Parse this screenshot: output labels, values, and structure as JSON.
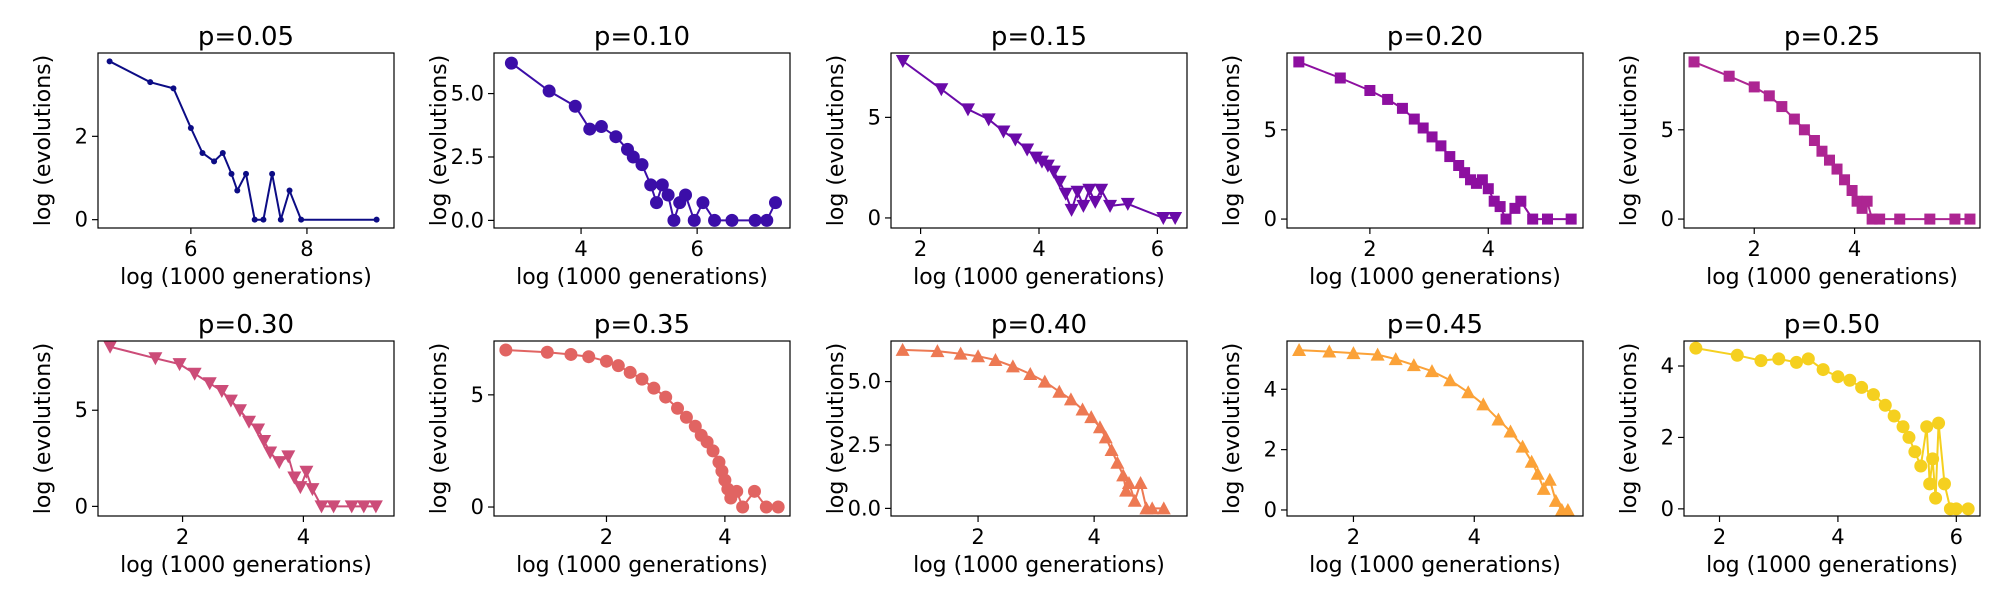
{
  "chart_data": [
    {
      "type": "line",
      "title": "p=0.05",
      "xlabel": "log (1000 generations)",
      "ylabel": "log (evolutions)",
      "color": "#0c0c85",
      "marker": "point",
      "xlim": [
        4.4,
        9.5
      ],
      "ylim": [
        -0.2,
        4.0
      ],
      "xticks": [
        6,
        8
      ],
      "yticks": [
        0,
        2
      ],
      "ytick_labels": [
        "0",
        "2"
      ],
      "x": [
        4.6,
        5.3,
        5.7,
        6.0,
        6.2,
        6.4,
        6.55,
        6.7,
        6.8,
        6.95,
        7.1,
        7.25,
        7.4,
        7.55,
        7.7,
        7.9,
        9.2
      ],
      "y": [
        3.8,
        3.3,
        3.15,
        2.2,
        1.6,
        1.4,
        1.6,
        1.1,
        0.7,
        1.1,
        0.0,
        0.0,
        1.1,
        0.0,
        0.7,
        0.0,
        0.0
      ]
    },
    {
      "type": "line",
      "title": "p=0.10",
      "xlabel": "log (1000 generations)",
      "ylabel": "log (evolutions)",
      "color": "#3b0ea8",
      "marker": "circle",
      "xlim": [
        2.5,
        7.6
      ],
      "ylim": [
        -0.3,
        6.6
      ],
      "xticks": [
        4,
        6
      ],
      "yticks": [
        0,
        2.5,
        5
      ],
      "ytick_labels": [
        "0.0",
        "2.5",
        "5.0"
      ],
      "x": [
        2.8,
        3.45,
        3.9,
        4.15,
        4.35,
        4.6,
        4.8,
        4.9,
        5.05,
        5.2,
        5.3,
        5.4,
        5.5,
        5.6,
        5.7,
        5.8,
        5.95,
        6.1,
        6.3,
        6.6,
        7.0,
        7.2,
        7.35
      ],
      "y": [
        6.2,
        5.1,
        4.5,
        3.6,
        3.7,
        3.3,
        2.8,
        2.5,
        2.2,
        1.4,
        0.7,
        1.4,
        1.0,
        0.0,
        0.7,
        1.0,
        0.0,
        0.7,
        0.0,
        0.0,
        0.0,
        0.0,
        0.7
      ]
    },
    {
      "type": "line",
      "title": "p=0.15",
      "xlabel": "log (1000 generations)",
      "ylabel": "log (evolutions)",
      "color": "#6a0aa8",
      "marker": "triangle-down",
      "xlim": [
        1.5,
        6.5
      ],
      "ylim": [
        -0.5,
        8.2
      ],
      "xticks": [
        2,
        4,
        6
      ],
      "yticks": [
        0,
        5
      ],
      "ytick_labels": [
        "0",
        "5"
      ],
      "x": [
        1.7,
        2.35,
        2.8,
        3.15,
        3.4,
        3.6,
        3.8,
        3.95,
        4.05,
        4.15,
        4.25,
        4.35,
        4.45,
        4.55,
        4.65,
        4.75,
        4.85,
        4.95,
        5.05,
        5.2,
        5.5,
        6.1,
        6.3
      ],
      "y": [
        7.8,
        6.4,
        5.4,
        4.9,
        4.3,
        3.9,
        3.4,
        3.0,
        2.8,
        2.6,
        2.3,
        1.8,
        1.2,
        0.4,
        1.3,
        0.6,
        1.4,
        0.8,
        1.4,
        0.6,
        0.7,
        0.0,
        0.0
      ]
    },
    {
      "type": "line",
      "title": "p=0.20",
      "xlabel": "log (1000 generations)",
      "ylabel": "log (evolutions)",
      "color": "#8d0fa0",
      "marker": "square",
      "xlim": [
        0.6,
        5.6
      ],
      "ylim": [
        -0.5,
        9.3
      ],
      "xticks": [
        2,
        4
      ],
      "yticks": [
        0,
        5
      ],
      "ytick_labels": [
        "0",
        "5"
      ],
      "x": [
        0.8,
        1.5,
        2.0,
        2.3,
        2.55,
        2.75,
        2.9,
        3.05,
        3.2,
        3.35,
        3.5,
        3.6,
        3.7,
        3.8,
        3.9,
        4.0,
        4.1,
        4.2,
        4.3,
        4.45,
        4.55,
        4.75,
        5.0,
        5.4
      ],
      "y": [
        8.8,
        7.9,
        7.2,
        6.7,
        6.2,
        5.6,
        5.1,
        4.6,
        4.1,
        3.5,
        3.0,
        2.6,
        2.2,
        2.0,
        2.2,
        1.7,
        1.0,
        0.7,
        0.0,
        0.6,
        1.0,
        0.0,
        0.0,
        0.0
      ]
    },
    {
      "type": "line",
      "title": "p=0.25",
      "xlabel": "log (1000 generations)",
      "ylabel": "log (evolutions)",
      "color": "#ad2592",
      "marker": "square",
      "xlim": [
        0.6,
        6.5
      ],
      "ylim": [
        -0.5,
        9.3
      ],
      "xticks": [
        2,
        4
      ],
      "yticks": [
        0,
        5
      ],
      "ytick_labels": [
        "0",
        "5"
      ],
      "x": [
        0.8,
        1.5,
        2.0,
        2.3,
        2.55,
        2.8,
        3.0,
        3.2,
        3.35,
        3.5,
        3.65,
        3.8,
        3.95,
        4.05,
        4.15,
        4.25,
        4.35,
        4.5,
        4.9,
        5.5,
        6.0,
        6.3
      ],
      "y": [
        8.8,
        8.0,
        7.4,
        6.9,
        6.3,
        5.6,
        5.0,
        4.4,
        3.8,
        3.3,
        2.8,
        2.2,
        1.6,
        1.0,
        0.6,
        1.0,
        0.0,
        0.0,
        0.0,
        0.0,
        0.0,
        0.0
      ]
    },
    {
      "type": "line",
      "title": "p=0.30",
      "xlabel": "log (1000 generations)",
      "ylabel": "log (evolutions)",
      "color": "#cc4c78",
      "marker": "triangle-down",
      "xlim": [
        0.6,
        5.5
      ],
      "ylim": [
        -0.5,
        8.6
      ],
      "xticks": [
        2,
        4
      ],
      "yticks": [
        0,
        5
      ],
      "ytick_labels": [
        "0",
        "5"
      ],
      "x": [
        0.8,
        1.55,
        1.95,
        2.2,
        2.45,
        2.65,
        2.8,
        2.95,
        3.1,
        3.25,
        3.35,
        3.45,
        3.6,
        3.75,
        3.85,
        3.95,
        4.05,
        4.15,
        4.3,
        4.5,
        4.8,
        5.0,
        5.2
      ],
      "y": [
        8.3,
        7.7,
        7.4,
        6.9,
        6.4,
        6.0,
        5.5,
        5.0,
        4.4,
        4.0,
        3.4,
        2.8,
        2.3,
        2.6,
        1.5,
        1.0,
        1.8,
        0.9,
        0.0,
        0.0,
        0.0,
        0.0,
        0.0
      ]
    },
    {
      "type": "line",
      "title": "p=0.35",
      "xlabel": "log (1000 generations)",
      "ylabel": "log (evolutions)",
      "color": "#e16462",
      "marker": "circle",
      "xlim": [
        0.1,
        5.1
      ],
      "ylim": [
        -0.4,
        7.4
      ],
      "xticks": [
        2,
        4
      ],
      "yticks": [
        0,
        5
      ],
      "ytick_labels": [
        "0",
        "5"
      ],
      "x": [
        0.3,
        1.0,
        1.4,
        1.7,
        2.0,
        2.2,
        2.4,
        2.6,
        2.8,
        3.0,
        3.2,
        3.35,
        3.5,
        3.6,
        3.7,
        3.8,
        3.9,
        3.95,
        4.0,
        4.05,
        4.1,
        4.2,
        4.3,
        4.5,
        4.7,
        4.9
      ],
      "y": [
        7.0,
        6.9,
        6.8,
        6.7,
        6.5,
        6.3,
        6.0,
        5.7,
        5.3,
        4.9,
        4.4,
        4.0,
        3.6,
        3.2,
        2.9,
        2.5,
        2.0,
        1.6,
        1.2,
        0.8,
        0.4,
        0.7,
        0.0,
        0.7,
        0.0,
        0.0
      ]
    },
    {
      "type": "line",
      "title": "p=0.40",
      "xlabel": "log (1000 generations)",
      "ylabel": "log (evolutions)",
      "color": "#ed7953",
      "marker": "triangle-up",
      "xlim": [
        0.5,
        5.6
      ],
      "ylim": [
        -0.3,
        6.6
      ],
      "xticks": [
        2,
        4
      ],
      "yticks": [
        0,
        2.5,
        5
      ],
      "ytick_labels": [
        "0.0",
        "2.5",
        "5.0"
      ],
      "x": [
        0.7,
        1.3,
        1.7,
        2.0,
        2.3,
        2.6,
        2.9,
        3.15,
        3.4,
        3.6,
        3.8,
        3.95,
        4.1,
        4.2,
        4.3,
        4.4,
        4.5,
        4.55,
        4.6,
        4.7,
        4.8,
        4.9,
        5.0,
        5.2
      ],
      "y": [
        6.25,
        6.2,
        6.1,
        6.0,
        5.85,
        5.6,
        5.3,
        5.0,
        4.6,
        4.3,
        3.9,
        3.6,
        3.2,
        2.8,
        2.3,
        1.8,
        1.3,
        0.7,
        1.0,
        0.3,
        1.0,
        0.0,
        0.0,
        0.0
      ]
    },
    {
      "type": "line",
      "title": "p=0.45",
      "xlabel": "log (1000 generations)",
      "ylabel": "log (evolutions)",
      "color": "#fba238",
      "marker": "triangle-up",
      "xlim": [
        0.9,
        5.8
      ],
      "ylim": [
        -0.2,
        5.6
      ],
      "xticks": [
        2,
        4
      ],
      "yticks": [
        0,
        2,
        4
      ],
      "ytick_labels": [
        "0",
        "2",
        "4"
      ],
      "x": [
        1.1,
        1.6,
        2.0,
        2.4,
        2.7,
        3.0,
        3.3,
        3.6,
        3.9,
        4.15,
        4.4,
        4.6,
        4.8,
        4.95,
        5.05,
        5.15,
        5.25,
        5.35,
        5.45,
        5.55
      ],
      "y": [
        5.3,
        5.25,
        5.2,
        5.15,
        5.0,
        4.8,
        4.6,
        4.3,
        3.9,
        3.5,
        3.0,
        2.6,
        2.1,
        1.6,
        1.2,
        0.7,
        1.0,
        0.3,
        0.0,
        0.0
      ]
    },
    {
      "type": "line",
      "title": "p=0.50",
      "xlabel": "log (1000 generations)",
      "ylabel": "log (evolutions)",
      "color": "#f5d01f",
      "marker": "circle",
      "xlim": [
        1.4,
        6.4
      ],
      "ylim": [
        -0.2,
        4.7
      ],
      "xticks": [
        2,
        4,
        6
      ],
      "yticks": [
        0,
        2,
        4
      ],
      "ytick_labels": [
        "0",
        "2",
        "4"
      ],
      "x": [
        1.6,
        2.3,
        2.7,
        3.0,
        3.3,
        3.5,
        3.75,
        4.0,
        4.2,
        4.4,
        4.6,
        4.8,
        4.95,
        5.1,
        5.2,
        5.3,
        5.4,
        5.5,
        5.55,
        5.6,
        5.65,
        5.7,
        5.8,
        5.9,
        6.0,
        6.2
      ],
      "y": [
        4.5,
        4.3,
        4.15,
        4.2,
        4.1,
        4.2,
        3.9,
        3.7,
        3.6,
        3.4,
        3.2,
        2.9,
        2.6,
        2.3,
        2.0,
        1.6,
        1.2,
        2.3,
        0.7,
        1.4,
        0.3,
        2.4,
        0.7,
        0.0,
        0.0,
        0.0
      ]
    }
  ]
}
